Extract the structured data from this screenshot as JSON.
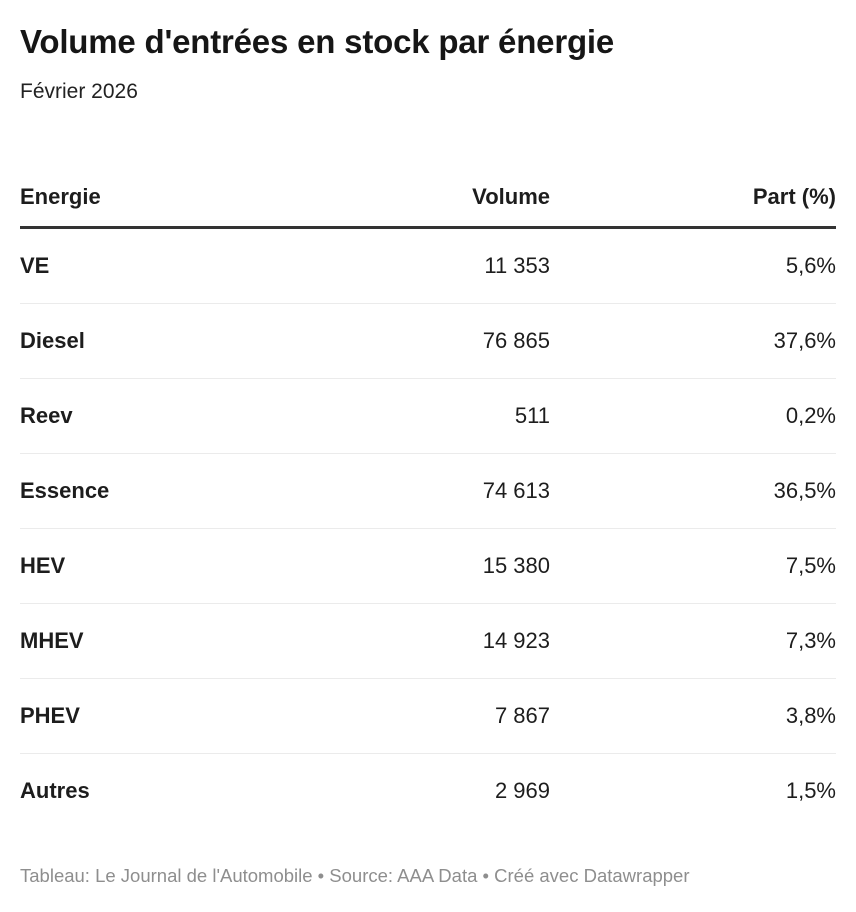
{
  "header": {
    "title": "Volume d'entrées en stock par énergie",
    "subtitle": "Février 2026"
  },
  "table": {
    "columns": [
      "Energie",
      "Volume",
      "Part (%)"
    ],
    "rows": [
      {
        "energie": "VE",
        "volume": "11 353",
        "part": "5,6%"
      },
      {
        "energie": "Diesel",
        "volume": "76 865",
        "part": "37,6%"
      },
      {
        "energie": "Reev",
        "volume": "511",
        "part": "0,2%"
      },
      {
        "energie": "Essence",
        "volume": "74 613",
        "part": "36,5%"
      },
      {
        "energie": "HEV",
        "volume": "15 380",
        "part": "7,5%"
      },
      {
        "energie": "MHEV",
        "volume": "14 923",
        "part": "7,3%"
      },
      {
        "energie": "PHEV",
        "volume": "7 867",
        "part": "3,8%"
      },
      {
        "energie": "Autres",
        "volume": "2 969",
        "part": "1,5%"
      }
    ]
  },
  "footer": {
    "text": "Tableau: Le Journal de l'Automobile • Source: AAA Data • Créé avec Datawrapper"
  },
  "colors": {
    "rule_dark": "#333333",
    "divider": "#ebebeb",
    "footer_text": "#8e8e8e",
    "title_text": "#161616",
    "body_text": "#1d1d1d"
  }
}
